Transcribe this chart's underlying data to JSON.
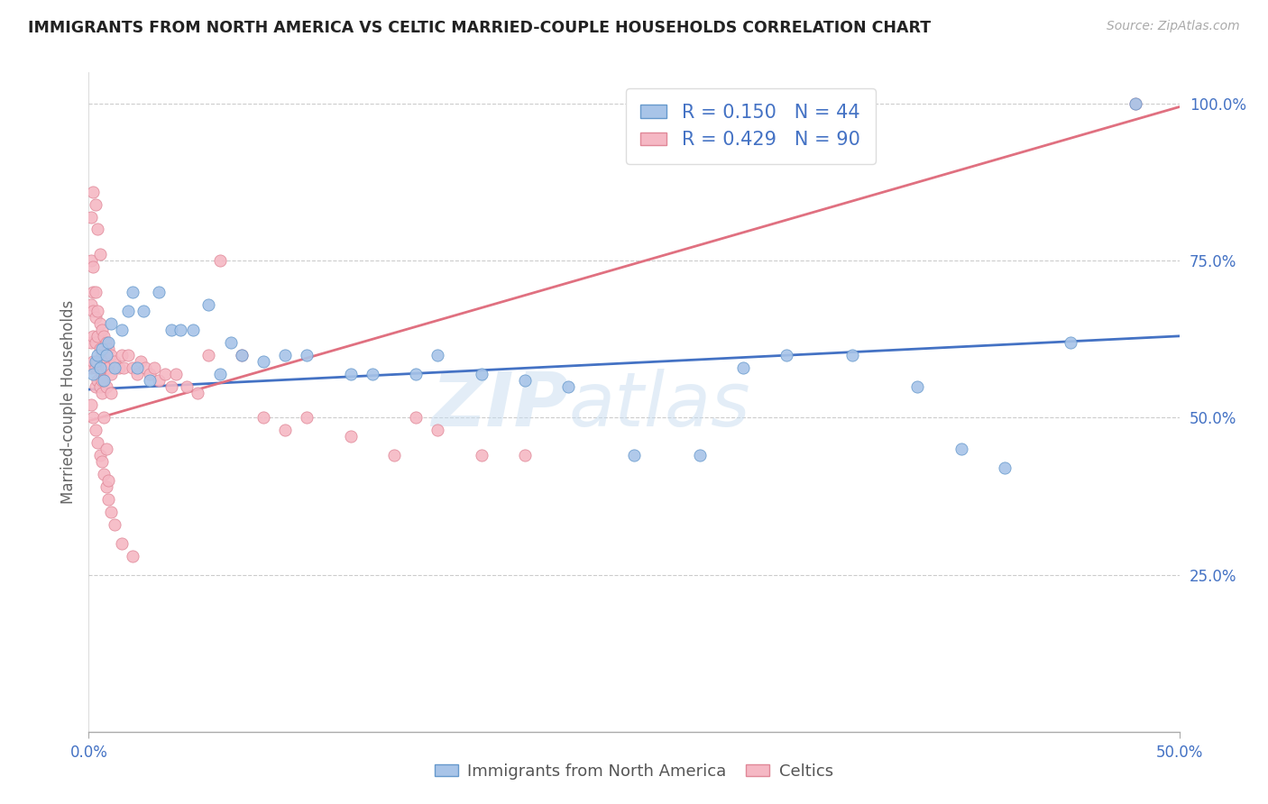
{
  "title": "IMMIGRANTS FROM NORTH AMERICA VS CELTIC MARRIED-COUPLE HOUSEHOLDS CORRELATION CHART",
  "source": "Source: ZipAtlas.com",
  "ylabel_left": "Married-couple Households",
  "legend_blue_label": "R = 0.150   N = 44",
  "legend_pink_label": "R = 0.429   N = 90",
  "legend_label_blue": "Immigrants from North America",
  "legend_label_pink": "Celtics",
  "blue_scatter_color": "#a8c4e8",
  "blue_edge_color": "#6699cc",
  "pink_scatter_color": "#f5b8c4",
  "pink_edge_color": "#e08898",
  "blue_line_color": "#4472c4",
  "pink_line_color": "#e07080",
  "title_color": "#222222",
  "axis_tick_color": "#4472c4",
  "ylabel_color": "#666666",
  "watermark_color": "#c8ddf0",
  "blue_scatter_x": [
    0.002,
    0.003,
    0.004,
    0.005,
    0.006,
    0.007,
    0.008,
    0.009,
    0.01,
    0.012,
    0.015,
    0.018,
    0.02,
    0.022,
    0.025,
    0.028,
    0.032,
    0.038,
    0.042,
    0.048,
    0.055,
    0.06,
    0.065,
    0.07,
    0.08,
    0.09,
    0.1,
    0.12,
    0.13,
    0.15,
    0.16,
    0.18,
    0.2,
    0.22,
    0.25,
    0.28,
    0.3,
    0.32,
    0.35,
    0.38,
    0.4,
    0.42,
    0.45,
    0.48
  ],
  "blue_scatter_y": [
    0.57,
    0.59,
    0.6,
    0.58,
    0.61,
    0.56,
    0.6,
    0.62,
    0.65,
    0.58,
    0.64,
    0.67,
    0.7,
    0.58,
    0.67,
    0.56,
    0.7,
    0.64,
    0.64,
    0.64,
    0.68,
    0.57,
    0.62,
    0.6,
    0.59,
    0.6,
    0.6,
    0.57,
    0.57,
    0.57,
    0.6,
    0.57,
    0.56,
    0.55,
    0.44,
    0.44,
    0.58,
    0.6,
    0.6,
    0.55,
    0.45,
    0.42,
    0.62,
    1.0
  ],
  "pink_scatter_x": [
    0.001,
    0.001,
    0.001,
    0.001,
    0.001,
    0.002,
    0.002,
    0.002,
    0.002,
    0.002,
    0.003,
    0.003,
    0.003,
    0.003,
    0.003,
    0.004,
    0.004,
    0.004,
    0.004,
    0.005,
    0.005,
    0.005,
    0.005,
    0.006,
    0.006,
    0.006,
    0.006,
    0.007,
    0.007,
    0.007,
    0.008,
    0.008,
    0.008,
    0.009,
    0.009,
    0.01,
    0.01,
    0.01,
    0.012,
    0.014,
    0.015,
    0.016,
    0.018,
    0.02,
    0.022,
    0.024,
    0.026,
    0.028,
    0.03,
    0.032,
    0.035,
    0.038,
    0.04,
    0.045,
    0.05,
    0.055,
    0.06,
    0.07,
    0.08,
    0.09,
    0.1,
    0.12,
    0.14,
    0.15,
    0.16,
    0.18,
    0.2,
    0.001,
    0.002,
    0.003,
    0.004,
    0.005,
    0.006,
    0.007,
    0.008,
    0.009,
    0.01,
    0.012,
    0.015,
    0.002,
    0.003,
    0.004,
    0.005,
    0.006,
    0.007,
    0.008,
    0.009,
    0.02,
    0.48
  ],
  "pink_scatter_y": [
    0.82,
    0.75,
    0.68,
    0.62,
    0.58,
    0.74,
    0.7,
    0.67,
    0.63,
    0.59,
    0.7,
    0.66,
    0.62,
    0.58,
    0.55,
    0.67,
    0.63,
    0.59,
    0.56,
    0.65,
    0.61,
    0.58,
    0.55,
    0.64,
    0.6,
    0.57,
    0.54,
    0.63,
    0.59,
    0.56,
    0.62,
    0.58,
    0.55,
    0.61,
    0.58,
    0.6,
    0.57,
    0.54,
    0.59,
    0.58,
    0.6,
    0.58,
    0.6,
    0.58,
    0.57,
    0.59,
    0.58,
    0.57,
    0.58,
    0.56,
    0.57,
    0.55,
    0.57,
    0.55,
    0.54,
    0.6,
    0.75,
    0.6,
    0.5,
    0.48,
    0.5,
    0.47,
    0.44,
    0.5,
    0.48,
    0.44,
    0.44,
    0.52,
    0.5,
    0.48,
    0.46,
    0.44,
    0.43,
    0.41,
    0.39,
    0.37,
    0.35,
    0.33,
    0.3,
    0.86,
    0.84,
    0.8,
    0.76,
    0.56,
    0.5,
    0.45,
    0.4,
    0.28,
    1.0
  ],
  "xlim": [
    0.0,
    0.5
  ],
  "ylim": [
    0.0,
    1.05
  ],
  "blue_trendline_y0": 0.545,
  "blue_trendline_y1": 0.63,
  "pink_trendline_y0": 0.495,
  "pink_trendline_y1": 0.995,
  "figsize": [
    14.06,
    8.92
  ],
  "dpi": 100
}
